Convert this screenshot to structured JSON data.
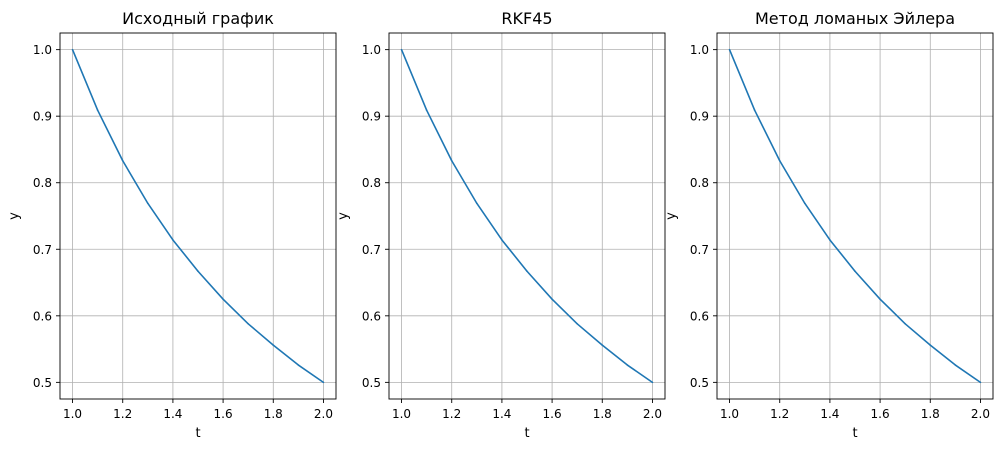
{
  "figure": {
    "background": "#ffffff"
  },
  "chart_data": [
    {
      "type": "line",
      "title": "Исходный график",
      "xlabel": "t",
      "ylabel": "y",
      "xlim": [
        0.95,
        2.05
      ],
      "ylim": [
        0.475,
        1.025
      ],
      "xticks": [
        1.0,
        1.2,
        1.4,
        1.6,
        1.8,
        2.0
      ],
      "xtick_labels": [
        "1.0",
        "1.2",
        "1.4",
        "1.6",
        "1.8",
        "2.0"
      ],
      "yticks": [
        0.5,
        0.6,
        0.7,
        0.8,
        0.9,
        1.0
      ],
      "ytick_labels": [
        "0.5",
        "0.6",
        "0.7",
        "0.8",
        "0.9",
        "1.0"
      ],
      "grid": true,
      "series": [
        {
          "color": "#1f77b4",
          "x": [
            1.0,
            1.1,
            1.2,
            1.3,
            1.4,
            1.5,
            1.6,
            1.7,
            1.8,
            1.9,
            2.0
          ],
          "y": [
            1.0,
            0.909,
            0.833,
            0.769,
            0.714,
            0.667,
            0.625,
            0.588,
            0.556,
            0.526,
            0.5
          ]
        }
      ]
    },
    {
      "type": "line",
      "title": "RKF45",
      "xlabel": "t",
      "ylabel": "y",
      "xlim": [
        0.95,
        2.05
      ],
      "ylim": [
        0.475,
        1.025
      ],
      "xticks": [
        1.0,
        1.2,
        1.4,
        1.6,
        1.8,
        2.0
      ],
      "xtick_labels": [
        "1.0",
        "1.2",
        "1.4",
        "1.6",
        "1.8",
        "2.0"
      ],
      "yticks": [
        0.5,
        0.6,
        0.7,
        0.8,
        0.9,
        1.0
      ],
      "ytick_labels": [
        "0.5",
        "0.6",
        "0.7",
        "0.8",
        "0.9",
        "1.0"
      ],
      "grid": true,
      "series": [
        {
          "color": "#1f77b4",
          "x": [
            1.0,
            1.1,
            1.2,
            1.3,
            1.4,
            1.5,
            1.6,
            1.7,
            1.8,
            1.9,
            2.0
          ],
          "y": [
            1.0,
            0.909,
            0.833,
            0.769,
            0.714,
            0.667,
            0.625,
            0.588,
            0.556,
            0.526,
            0.5
          ]
        }
      ]
    },
    {
      "type": "line",
      "title": "Метод ломаных Эйлера",
      "xlabel": "t",
      "ylabel": "y",
      "xlim": [
        0.95,
        2.05
      ],
      "ylim": [
        0.475,
        1.025
      ],
      "xticks": [
        1.0,
        1.2,
        1.4,
        1.6,
        1.8,
        2.0
      ],
      "xtick_labels": [
        "1.0",
        "1.2",
        "1.4",
        "1.6",
        "1.8",
        "2.0"
      ],
      "yticks": [
        0.5,
        0.6,
        0.7,
        0.8,
        0.9,
        1.0
      ],
      "ytick_labels": [
        "0.5",
        "0.6",
        "0.7",
        "0.8",
        "0.9",
        "1.0"
      ],
      "grid": true,
      "series": [
        {
          "color": "#1f77b4",
          "x": [
            1.0,
            1.1,
            1.2,
            1.3,
            1.4,
            1.5,
            1.6,
            1.7,
            1.8,
            1.9,
            2.0
          ],
          "y": [
            1.0,
            0.909,
            0.833,
            0.769,
            0.714,
            0.667,
            0.625,
            0.588,
            0.556,
            0.526,
            0.5
          ]
        }
      ]
    }
  ]
}
